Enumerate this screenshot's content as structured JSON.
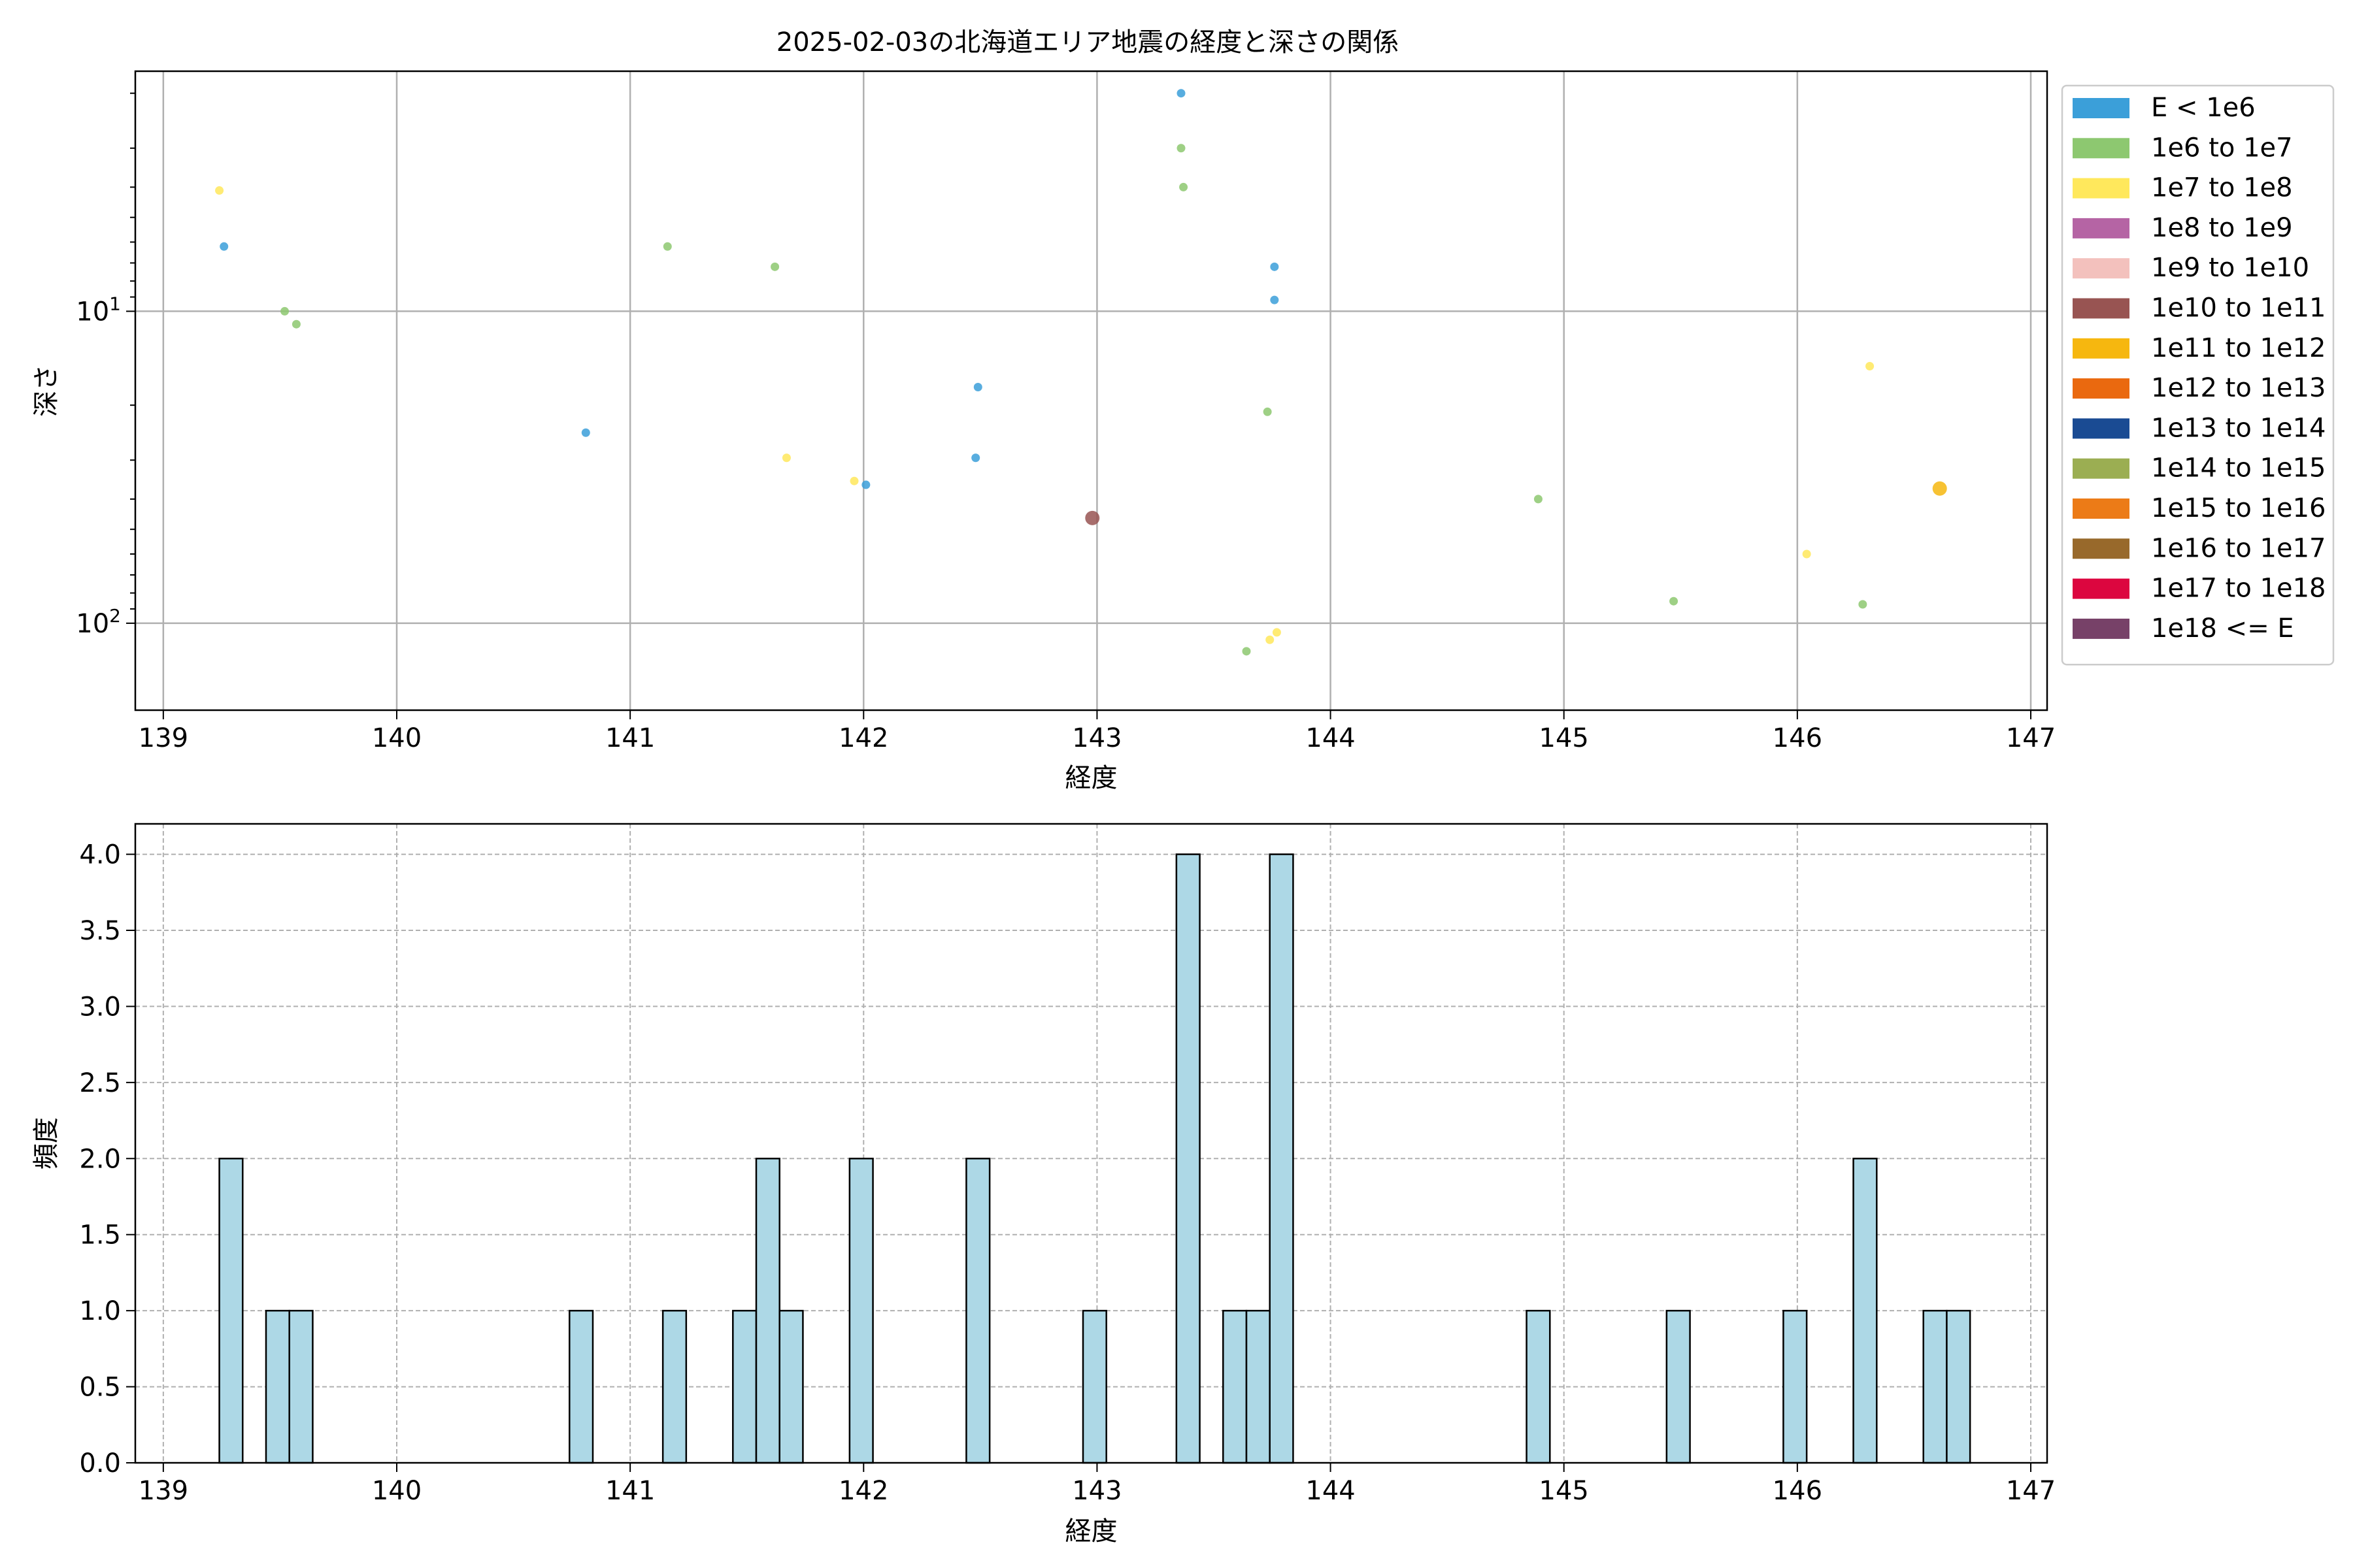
{
  "title": "2025-02-03の北海道エリア地震の経度と深さの関係",
  "chart_data": [
    {
      "type": "scatter",
      "xlabel": "経度",
      "ylabel": "深さ",
      "xlim": [
        138.88,
        147.07
      ],
      "ylim": [
        190,
        1.7
      ],
      "yscale": "log",
      "y_inverted": true,
      "xticks": [
        139,
        140,
        141,
        142,
        143,
        144,
        145,
        146,
        147
      ],
      "yticks": [
        {
          "value": 10,
          "base": "10",
          "exp": "1"
        },
        {
          "value": 100,
          "base": "10",
          "exp": "2"
        }
      ],
      "grid": true,
      "legend_position": "outside-right",
      "legend": [
        {
          "label": "E < 1e6",
          "color": "#3b9fd9"
        },
        {
          "label": "1e6 to 1e7",
          "color": "#8dc870"
        },
        {
          "label": "1e7 to 1e8",
          "color": "#ffe85c"
        },
        {
          "label": "1e8 to 1e9",
          "color": "#b564a4"
        },
        {
          "label": "1e9 to 1e10",
          "color": "#f3c1bd"
        },
        {
          "label": "1e10 to 1e11",
          "color": "#985452"
        },
        {
          "label": "1e11 to 1e12",
          "color": "#f6b70f"
        },
        {
          "label": "1e12 to 1e13",
          "color": "#ea690f"
        },
        {
          "label": "1e13 to 1e14",
          "color": "#1a4b93"
        },
        {
          "label": "1e14 to 1e15",
          "color": "#9bae52"
        },
        {
          "label": "1e15 to 1e16",
          "color": "#ec7b17"
        },
        {
          "label": "1e16 to 1e17",
          "color": "#98692b"
        },
        {
          "label": "1e17 to 1e18",
          "color": "#dc063f"
        },
        {
          "label": "1e18 <= E",
          "color": "#774168"
        }
      ],
      "points": [
        {
          "x": 139.24,
          "y": 4.1,
          "class": 2
        },
        {
          "x": 139.26,
          "y": 6.2,
          "class": 0
        },
        {
          "x": 139.52,
          "y": 10.0,
          "class": 1
        },
        {
          "x": 139.57,
          "y": 11.0,
          "class": 1
        },
        {
          "x": 140.81,
          "y": 24.5,
          "class": 0
        },
        {
          "x": 141.16,
          "y": 6.2,
          "class": 1
        },
        {
          "x": 141.62,
          "y": 7.2,
          "class": 1
        },
        {
          "x": 141.67,
          "y": 29.5,
          "class": 2
        },
        {
          "x": 141.96,
          "y": 35.0,
          "class": 2
        },
        {
          "x": 142.01,
          "y": 36.0,
          "class": 0
        },
        {
          "x": 142.48,
          "y": 29.5,
          "class": 0
        },
        {
          "x": 142.49,
          "y": 17.5,
          "class": 0
        },
        {
          "x": 142.98,
          "y": 46.0,
          "class": 5
        },
        {
          "x": 143.36,
          "y": 2.0,
          "class": 0
        },
        {
          "x": 143.36,
          "y": 3.0,
          "class": 1
        },
        {
          "x": 143.37,
          "y": 4.0,
          "class": 1
        },
        {
          "x": 143.64,
          "y": 123.0,
          "class": 1
        },
        {
          "x": 143.73,
          "y": 21.0,
          "class": 1
        },
        {
          "x": 143.74,
          "y": 113.0,
          "class": 2
        },
        {
          "x": 143.76,
          "y": 7.2,
          "class": 0
        },
        {
          "x": 143.76,
          "y": 9.2,
          "class": 0
        },
        {
          "x": 143.77,
          "y": 107.0,
          "class": 2
        },
        {
          "x": 144.89,
          "y": 40.0,
          "class": 1
        },
        {
          "x": 145.47,
          "y": 85.0,
          "class": 1
        },
        {
          "x": 146.04,
          "y": 60.0,
          "class": 2
        },
        {
          "x": 146.28,
          "y": 87.0,
          "class": 1
        },
        {
          "x": 146.31,
          "y": 15.0,
          "class": 2
        },
        {
          "x": 146.61,
          "y": 37.0,
          "class": 6
        }
      ]
    },
    {
      "type": "bar",
      "subtype": "histogram",
      "xlabel": "経度",
      "ylabel": "頻度",
      "xlim": [
        138.88,
        147.07
      ],
      "ylim": [
        0,
        4.2
      ],
      "xticks": [
        139,
        140,
        141,
        142,
        143,
        144,
        145,
        146,
        147
      ],
      "yticks": [
        "0.0",
        "0.5",
        "1.0",
        "1.5",
        "2.0",
        "2.5",
        "3.0",
        "3.5",
        "4.0"
      ],
      "grid": true,
      "bar_color": "#add8e6",
      "edge_color": "#000000",
      "bins": [
        {
          "start": 139.24,
          "end": 139.34,
          "count": 2
        },
        {
          "start": 139.44,
          "end": 139.54,
          "count": 1
        },
        {
          "start": 139.54,
          "end": 139.64,
          "count": 1
        },
        {
          "start": 140.74,
          "end": 140.84,
          "count": 1
        },
        {
          "start": 141.14,
          "end": 141.24,
          "count": 1
        },
        {
          "start": 141.44,
          "end": 141.54,
          "count": 1
        },
        {
          "start": 141.54,
          "end": 141.64,
          "count": 2
        },
        {
          "start": 141.64,
          "end": 141.74,
          "count": 1
        },
        {
          "start": 141.94,
          "end": 142.04,
          "count": 2
        },
        {
          "start": 142.44,
          "end": 142.54,
          "count": 2
        },
        {
          "start": 142.94,
          "end": 143.04,
          "count": 1
        },
        {
          "start": 143.34,
          "end": 143.44,
          "count": 4
        },
        {
          "start": 143.54,
          "end": 143.64,
          "count": 1
        },
        {
          "start": 143.64,
          "end": 143.74,
          "count": 1
        },
        {
          "start": 143.74,
          "end": 143.84,
          "count": 4
        },
        {
          "start": 144.84,
          "end": 144.94,
          "count": 1
        },
        {
          "start": 145.44,
          "end": 145.54,
          "count": 1
        },
        {
          "start": 145.94,
          "end": 146.04,
          "count": 1
        },
        {
          "start": 146.24,
          "end": 146.34,
          "count": 2
        },
        {
          "start": 146.54,
          "end": 146.64,
          "count": 1
        },
        {
          "start": 146.64,
          "end": 146.74,
          "count": 1
        }
      ]
    }
  ]
}
